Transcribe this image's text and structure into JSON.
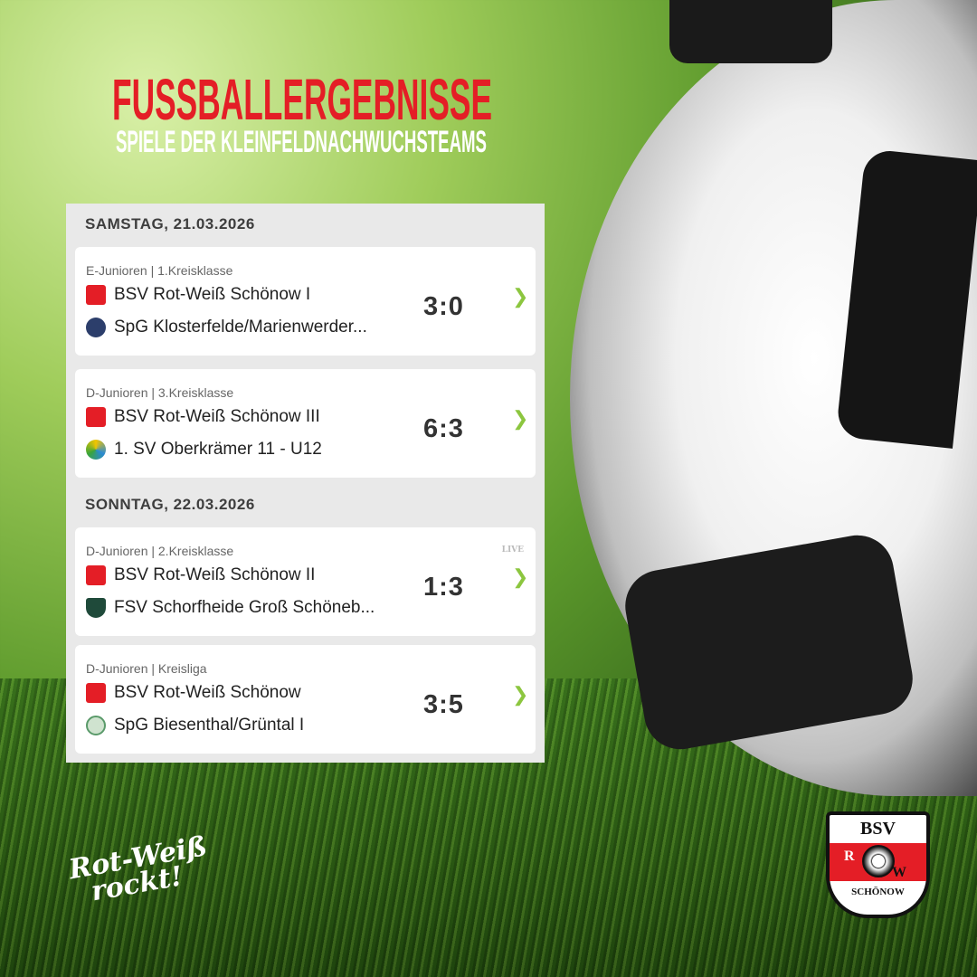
{
  "header": {
    "title": "FUSSBALLERGEBNISSE",
    "subtitle": "SPIELE DER KLEINFELDNACHWUCHSTEAMS"
  },
  "days": [
    {
      "date": "SAMSTAG, 21.03.2026",
      "matches": [
        {
          "league": "E-Junioren | 1.Kreisklasse",
          "home": "BSV Rot-Weiß Schönow I",
          "away": "SpG Klosterfelde/Marienwerder...",
          "score": "3:0",
          "live": ""
        },
        {
          "league": "D-Junioren | 3.Kreisklasse",
          "home": "BSV Rot-Weiß Schönow III",
          "away": "1. SV Oberkrämer 11 - U12",
          "score": "6:3",
          "live": ""
        }
      ]
    },
    {
      "date": "SONNTAG, 22.03.2026",
      "matches": [
        {
          "league": "D-Junioren | 2.Kreisklasse",
          "home": "BSV Rot-Weiß Schönow II",
          "away": "FSV Schorfheide Groß Schöneb...",
          "score": "1:3",
          "live": "LIVE"
        },
        {
          "league": "D-Junioren | Kreisliga",
          "home": "BSV Rot-Weiß Schönow",
          "away": "SpG Biesenthal/Grüntal I",
          "score": "3:5",
          "live": ""
        }
      ]
    }
  ],
  "slogan": {
    "line1": "Rot-Weiß",
    "line2": "rockt!"
  },
  "club_logo": {
    "top": "BSV",
    "left": "R",
    "right": "W",
    "bottom": "SCHÖNOW"
  },
  "colors": {
    "title": "#e41e26",
    "chevron": "#8cc63f",
    "panel": "#e9e9e9"
  },
  "icons": {
    "chevron": "chevron-right-icon",
    "crest": "club-crest-icon"
  }
}
